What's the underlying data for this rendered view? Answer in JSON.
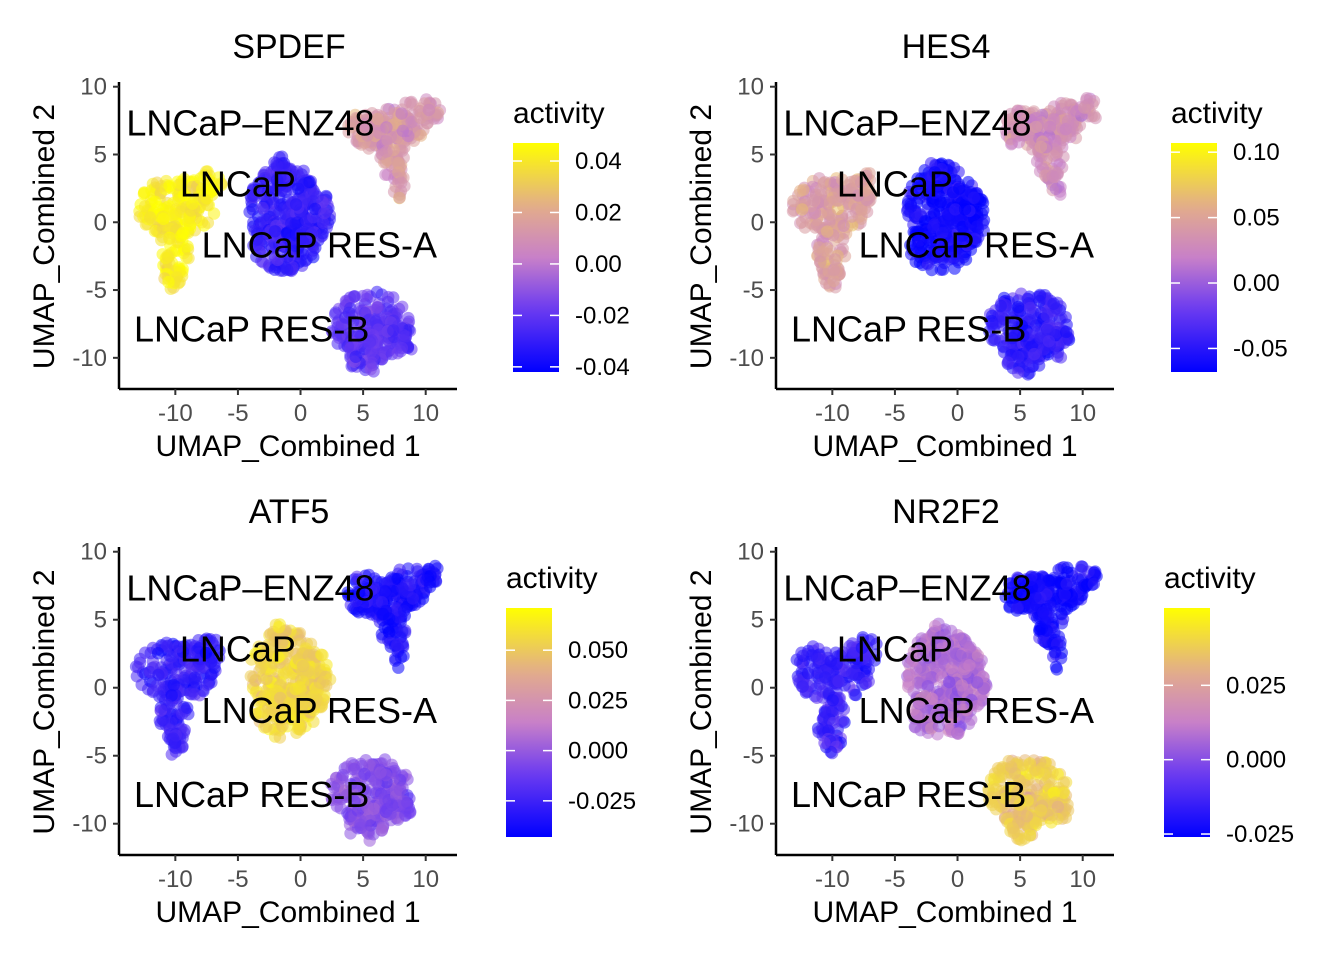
{
  "chart_data": [
    {
      "type": "scatter",
      "title": "SPDEF",
      "xlabel": "UMAP_Combined 1",
      "ylabel": "UMAP_Combined 2",
      "xlim": [
        -14.5,
        12.5
      ],
      "ylim": [
        -12.3,
        10.2
      ],
      "xticks": [
        -10,
        -5,
        0,
        5,
        10
      ],
      "yticks": [
        -10,
        -5,
        0,
        5,
        10
      ],
      "xtick_labels": [
        "-10",
        "-5",
        "0",
        "5",
        "10"
      ],
      "ytick_labels": [
        "-10",
        "-5",
        "0",
        "5",
        "10"
      ],
      "grid": false,
      "color_scale": {
        "title": "activity",
        "low_color": "#0000ff",
        "mid_color": "#c080c8",
        "high_color": "#ffff00",
        "range": [
          -0.042,
          0.047
        ],
        "ticks": [
          -0.04,
          -0.02,
          0.0,
          0.02,
          0.04
        ],
        "tick_labels": [
          "-0.04",
          "-0.02",
          "0.00",
          "0.02",
          "0.04"
        ]
      },
      "cluster_labels": [
        {
          "text": "LNCaP–ENZ48",
          "x": -4.0,
          "y": 7.3
        },
        {
          "text": "LNCaP",
          "x": -5.0,
          "y": 2.8
        },
        {
          "text": "LNCaP RES-A",
          "x": 1.5,
          "y": -1.7
        },
        {
          "text": "LNCaP RES-B",
          "x": -3.9,
          "y": -7.9
        }
      ],
      "clusters": [
        {
          "name": "LNCaP–ENZ48",
          "activity": 0.012
        },
        {
          "name": "LNCaP",
          "activity": 0.043
        },
        {
          "name": "LNCaP RES-A",
          "activity": -0.03
        },
        {
          "name": "LNCaP RES-B",
          "activity": -0.022
        }
      ]
    },
    {
      "type": "scatter",
      "title": "HES4",
      "xlabel": "UMAP_Combined 1",
      "ylabel": "UMAP_Combined 2",
      "xlim": [
        -14.5,
        12.5
      ],
      "ylim": [
        -12.3,
        10.2
      ],
      "xticks": [
        -10,
        -5,
        0,
        5,
        10
      ],
      "yticks": [
        -10,
        -5,
        0,
        5,
        10
      ],
      "xtick_labels": [
        "-10",
        "-5",
        "0",
        "5",
        "10"
      ],
      "ytick_labels": [
        "-10",
        "-5",
        "0",
        "5",
        "10"
      ],
      "grid": false,
      "color_scale": {
        "title": "activity",
        "low_color": "#0000ff",
        "mid_color": "#c080c8",
        "high_color": "#ffff00",
        "range": [
          -0.068,
          0.107
        ],
        "ticks": [
          -0.05,
          0.0,
          0.05,
          0.1
        ],
        "tick_labels": [
          "-0.05",
          "0.00",
          "0.05",
          "0.10"
        ]
      },
      "cluster_labels": [
        {
          "text": "LNCaP–ENZ48",
          "x": -4.0,
          "y": 7.3
        },
        {
          "text": "LNCaP",
          "x": -5.0,
          "y": 2.8
        },
        {
          "text": "LNCaP RES-A",
          "x": 1.5,
          "y": -1.7
        },
        {
          "text": "LNCaP RES-B",
          "x": -3.9,
          "y": -7.9
        }
      ],
      "clusters": [
        {
          "name": "LNCaP–ENZ48",
          "activity": 0.03
        },
        {
          "name": "LNCaP",
          "activity": 0.045
        },
        {
          "name": "LNCaP RES-A",
          "activity": -0.06
        },
        {
          "name": "LNCaP RES-B",
          "activity": -0.045
        }
      ]
    },
    {
      "type": "scatter",
      "title": "ATF5",
      "xlabel": "UMAP_Combined 1",
      "ylabel": "UMAP_Combined 2",
      "xlim": [
        -14.5,
        12.5
      ],
      "ylim": [
        -12.3,
        10.2
      ],
      "xticks": [
        -10,
        -5,
        0,
        5,
        10
      ],
      "yticks": [
        -10,
        -5,
        0,
        5,
        10
      ],
      "xtick_labels": [
        "-10",
        "-5",
        "0",
        "5",
        "10"
      ],
      "ytick_labels": [
        "-10",
        "-5",
        "0",
        "5",
        "10"
      ],
      "grid": false,
      "color_scale": {
        "title": "activity",
        "low_color": "#0000ff",
        "mid_color": "#c080c8",
        "high_color": "#ffff00",
        "range": [
          -0.043,
          0.071
        ],
        "ticks": [
          -0.025,
          0.0,
          0.025,
          0.05
        ],
        "tick_labels": [
          "-0.025",
          "0.000",
          "0.025",
          "0.050"
        ]
      },
      "cluster_labels": [
        {
          "text": "LNCaP–ENZ48",
          "x": -4.0,
          "y": 7.3
        },
        {
          "text": "LNCaP",
          "x": -5.0,
          "y": 2.8
        },
        {
          "text": "LNCaP RES-A",
          "x": 1.5,
          "y": -1.7
        },
        {
          "text": "LNCaP RES-B",
          "x": -3.9,
          "y": -7.9
        }
      ],
      "clusters": [
        {
          "name": "LNCaP–ENZ48",
          "activity": -0.035
        },
        {
          "name": "LNCaP",
          "activity": -0.028
        },
        {
          "name": "LNCaP RES-A",
          "activity": 0.055
        },
        {
          "name": "LNCaP RES-B",
          "activity": -0.005
        }
      ]
    },
    {
      "type": "scatter",
      "title": "NR2F2",
      "xlabel": "UMAP_Combined 1",
      "ylabel": "UMAP_Combined 2",
      "xlim": [
        -14.5,
        12.5
      ],
      "ylim": [
        -12.3,
        10.2
      ],
      "xticks": [
        -10,
        -5,
        0,
        5,
        10
      ],
      "yticks": [
        -10,
        -5,
        0,
        5,
        10
      ],
      "xtick_labels": [
        "-10",
        "-5",
        "0",
        "5",
        "10"
      ],
      "ytick_labels": [
        "-10",
        "-5",
        "0",
        "5",
        "10"
      ],
      "grid": false,
      "color_scale": {
        "title": "activity",
        "low_color": "#0000ff",
        "mid_color": "#c080c8",
        "high_color": "#ffff00",
        "range": [
          -0.026,
          0.051
        ],
        "ticks": [
          -0.025,
          0.0,
          0.025
        ],
        "tick_labels": [
          "-0.025",
          "0.000",
          "0.025"
        ]
      },
      "cluster_labels": [
        {
          "text": "LNCaP–ENZ48",
          "x": -4.0,
          "y": 7.3
        },
        {
          "text": "LNCaP",
          "x": -5.0,
          "y": 2.8
        },
        {
          "text": "LNCaP RES-A",
          "x": 1.5,
          "y": -1.7
        },
        {
          "text": "LNCaP RES-B",
          "x": -3.9,
          "y": -7.9
        }
      ],
      "clusters": [
        {
          "name": "LNCaP–ENZ48",
          "activity": -0.022
        },
        {
          "name": "LNCaP",
          "activity": -0.015
        },
        {
          "name": "LNCaP RES-A",
          "activity": 0.008
        },
        {
          "name": "LNCaP RES-B",
          "activity": 0.038
        }
      ]
    }
  ]
}
